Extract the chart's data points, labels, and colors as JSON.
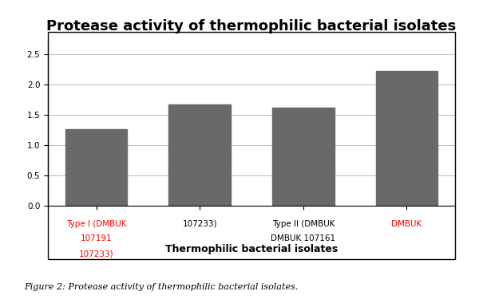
{
  "title": "Protease activity of thermophilic bacterial isolates",
  "xlabel": "Thermophilic bacterial isolates",
  "ylabel": "",
  "bar_values": [
    1.27,
    1.67,
    1.62,
    2.23
  ],
  "bar_positions": [
    0,
    1.5,
    3,
    4.5
  ],
  "bar_width": 0.9,
  "bar_color": "#696969",
  "ylim": [
    0,
    2.75
  ],
  "yticks": [
    0,
    0.5,
    1.0,
    1.5,
    2.0,
    2.5
  ],
  "tick_labels_line1": [
    "Type I (DMBUK",
    "",
    "Type II (DMBUK",
    "DMBUK"
  ],
  "tick_labels_line2": [
    "107191",
    "107233)",
    "DMBUK 107161",
    ""
  ],
  "tick_labels_line3": [
    "107233)",
    "",
    "",
    ""
  ],
  "tick_label_colors": [
    "red",
    "black",
    "black",
    "red"
  ],
  "background_color": "#ffffff",
  "grid_color": "#bbbbbb",
  "title_fontsize": 13,
  "axis_label_fontsize": 9,
  "tick_fontsize": 7.5,
  "figure_caption": "Figure 2: Protease activity of thermophilic bacterial isolates."
}
